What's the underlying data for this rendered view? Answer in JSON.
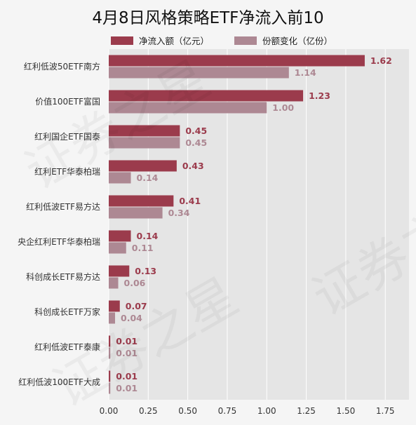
{
  "chart_data": {
    "type": "bar",
    "orientation": "horizontal",
    "title": "4月8日风格策略ETF净流入前10",
    "categories": [
      "红利低波50ETF南方",
      "价值100ETF富国",
      "红利国企ETF国泰",
      "红利ETF华泰柏瑞",
      "红利低波ETF易方达",
      "央企红利ETF华泰柏瑞",
      "科创成长ETF易方达",
      "科创成长ETF万家",
      "红利低波ETF泰康",
      "红利低波100ETF大成"
    ],
    "series": [
      {
        "name": "净流入额（亿元）",
        "color": "#9b3b4c",
        "values": [
          1.62,
          1.23,
          0.45,
          0.43,
          0.41,
          0.14,
          0.13,
          0.07,
          0.01,
          0.01
        ],
        "labels": [
          "1.62",
          "1.23",
          "0.45",
          "0.43",
          "0.41",
          "0.14",
          "0.13",
          "0.07",
          "0.01",
          "0.01"
        ]
      },
      {
        "name": "份额变化（亿份）",
        "color": "#ad8893",
        "values": [
          1.14,
          1.0,
          0.45,
          0.14,
          0.34,
          0.11,
          0.06,
          0.04,
          0.01,
          0.01
        ],
        "labels": [
          "1.14",
          "1.00",
          "0.45",
          "0.14",
          "0.34",
          "0.11",
          "0.06",
          "0.04",
          "0.01",
          "0.01"
        ]
      }
    ],
    "xlim": [
      0,
      1.9
    ],
    "xticks": [
      0.0,
      0.25,
      0.5,
      0.75,
      1.0,
      1.25,
      1.5,
      1.75
    ],
    "xtick_labels": [
      "0.00",
      "0.25",
      "0.50",
      "0.75",
      "1.00",
      "1.25",
      "1.50",
      "1.75"
    ],
    "grid": true,
    "legend": "top"
  },
  "watermark": "证券之星"
}
